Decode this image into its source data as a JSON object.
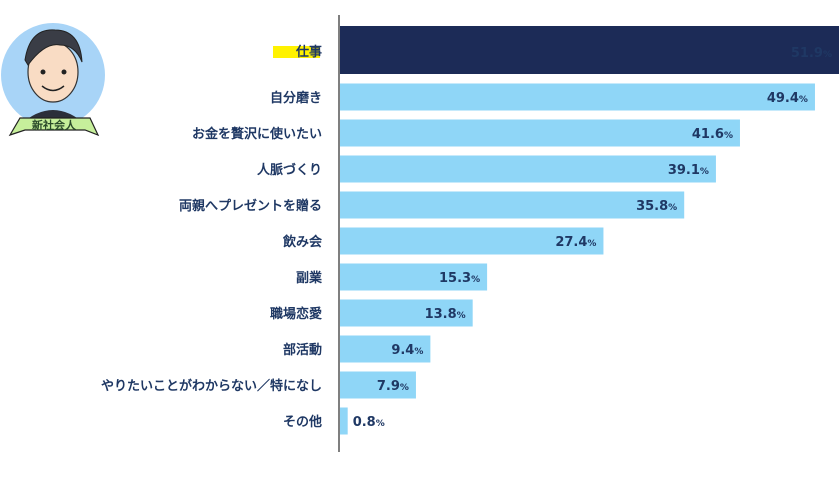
{
  "chart_data": {
    "type": "bar",
    "orientation": "horizontal",
    "title": "",
    "xlabel": "",
    "ylabel": "",
    "xlim": [
      0,
      52
    ],
    "grid": false,
    "categories": [
      "仕事",
      "自分磨き",
      "お金を贅沢に使いたい",
      "人脈づくり",
      "両親へプレゼントを贈る",
      "飲み会",
      "副業",
      "職場恋愛",
      "部活動",
      "やりたいことがわからない／特になし",
      "その他"
    ],
    "values": [
      51.9,
      49.4,
      41.6,
      39.1,
      35.8,
      27.4,
      15.3,
      13.8,
      9.4,
      7.9,
      0.8
    ],
    "value_suffix": "%",
    "highlight_index": 0,
    "colors": {
      "highlight": "#1c2b57",
      "bar": "#8fd6f7",
      "label": "#1f3864",
      "highlight_value": "#f5e21b",
      "highlight_marker": "#fff200",
      "axis": "#555555"
    }
  },
  "badge": {
    "text": "新社会人"
  }
}
